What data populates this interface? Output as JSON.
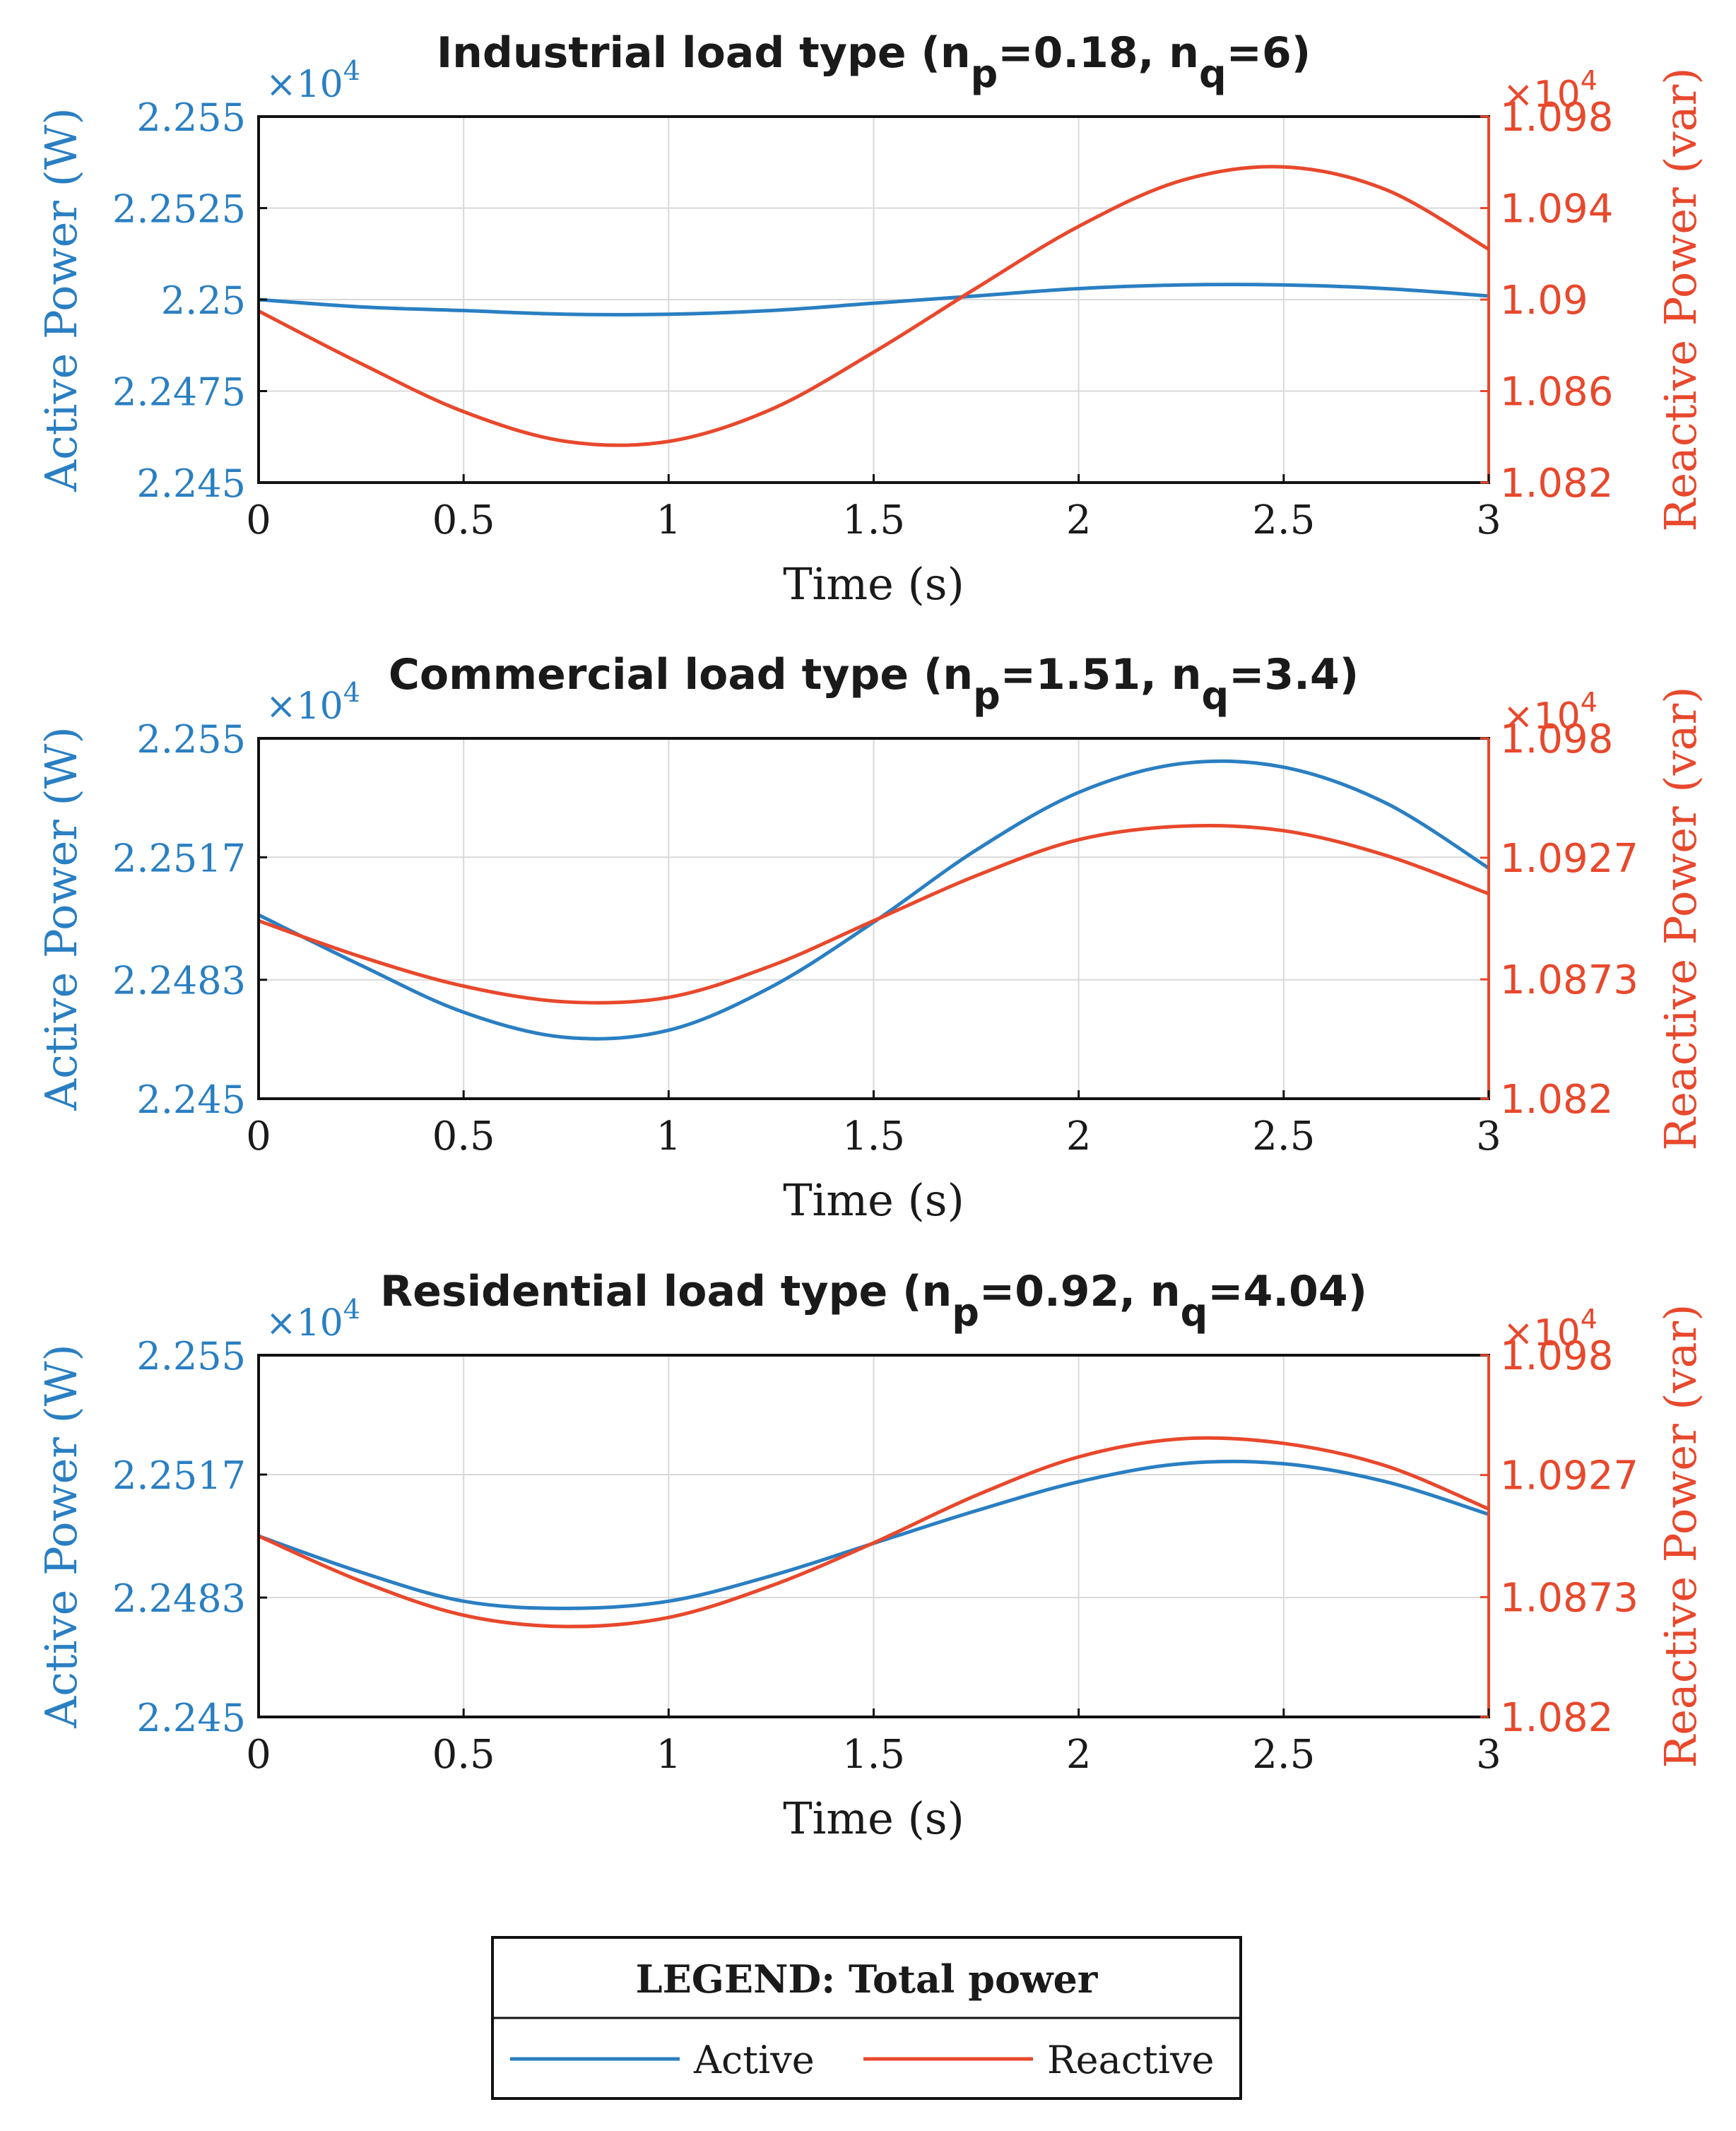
{
  "colors": {
    "active": "#2a7fc2",
    "reactive": "#e8482c",
    "grid": "#d9d9d9",
    "axis": "#111111",
    "text": "#1a1a1a"
  },
  "legend": {
    "title": "LEGEND: Total power",
    "items": [
      "Active",
      "Reactive"
    ]
  },
  "chart_data": [
    {
      "type": "line",
      "title": "Industrial load type (n_p=0.18, n_q=6)",
      "title_parts": {
        "prefix": "Industrial load type (n",
        "sub_p": "p",
        "mid": "=0.18, n",
        "sub_q": "q",
        "suffix": "=6)"
      },
      "xlabel": "Time (s)",
      "ylabel_left": "Active Power (W)",
      "ylabel_right": "Reactive Power (var)",
      "scale_left": "×10",
      "scale_right": "×10",
      "scale_exp": "4",
      "xlim": [
        0,
        3
      ],
      "xticks": [
        0,
        0.5,
        1,
        1.5,
        2,
        2.5,
        3
      ],
      "xtick_labels": [
        "0",
        "0.5",
        "1",
        "1.5",
        "2",
        "2.5",
        "3"
      ],
      "ylim_left": [
        2.245,
        2.255
      ],
      "yticks_left": [
        2.245,
        2.2475,
        2.25,
        2.2525,
        2.255
      ],
      "ytick_labels_left": [
        "2.245",
        "2.2475",
        "2.25",
        "2.2525",
        "2.255"
      ],
      "ylim_right": [
        1.082,
        1.098
      ],
      "yticks_right": [
        1.082,
        1.086,
        1.09,
        1.094,
        1.098
      ],
      "ytick_labels_right": [
        "1.082",
        "1.086",
        "1.09",
        "1.094",
        "1.098"
      ],
      "x": [
        0,
        0.25,
        0.5,
        0.75,
        1,
        1.25,
        1.5,
        1.75,
        2,
        2.25,
        2.5,
        2.75,
        3
      ],
      "series": [
        {
          "name": "Active",
          "axis": "left",
          "values": [
            2.25,
            2.2498,
            2.2497,
            2.2496,
            2.2496,
            2.2497,
            2.2499,
            2.2501,
            2.2503,
            2.2504,
            2.2504,
            2.2503,
            2.2501
          ]
        },
        {
          "name": "Reactive",
          "axis": "right",
          "values": [
            1.0895,
            1.0872,
            1.0851,
            1.0838,
            1.0838,
            1.0852,
            1.0877,
            1.0905,
            1.0932,
            1.0952,
            1.0958,
            1.0948,
            1.0922
          ]
        }
      ]
    },
    {
      "type": "line",
      "title": "Commercial load type (n_p=1.51, n_q=3.4)",
      "title_parts": {
        "prefix": "Commercial load type (n",
        "sub_p": "p",
        "mid": "=1.51, n",
        "sub_q": "q",
        "suffix": "=3.4)"
      },
      "xlabel": "Time (s)",
      "ylabel_left": "Active Power (W)",
      "ylabel_right": "Reactive Power (var)",
      "scale_left": "×10",
      "scale_right": "×10",
      "scale_exp": "4",
      "xlim": [
        0,
        3
      ],
      "xticks": [
        0,
        0.5,
        1,
        1.5,
        2,
        2.5,
        3
      ],
      "xtick_labels": [
        "0",
        "0.5",
        "1",
        "1.5",
        "2",
        "2.5",
        "3"
      ],
      "ylim_left": [
        2.245,
        2.255
      ],
      "yticks_left": [
        2.245,
        2.2483,
        2.2517,
        2.255
      ],
      "ytick_labels_left": [
        "2.245",
        "2.2483",
        "2.2517",
        "2.255"
      ],
      "ylim_right": [
        1.082,
        1.098
      ],
      "yticks_right": [
        1.082,
        1.0873,
        1.0927,
        1.098
      ],
      "ytick_labels_right": [
        "1.082",
        "1.0873",
        "1.0927",
        "1.098"
      ],
      "x": [
        0,
        0.25,
        0.5,
        0.75,
        1,
        1.25,
        1.5,
        1.75,
        2,
        2.25,
        2.5,
        2.75,
        3
      ],
      "series": [
        {
          "name": "Active",
          "axis": "left",
          "values": [
            2.2501,
            2.2487,
            2.2474,
            2.2467,
            2.2469,
            2.2481,
            2.2499,
            2.2519,
            2.2535,
            2.2543,
            2.2542,
            2.2532,
            2.2514
          ]
        },
        {
          "name": "Reactive",
          "axis": "right",
          "values": [
            1.0899,
            1.0883,
            1.087,
            1.0863,
            1.0865,
            1.0879,
            1.0899,
            1.0919,
            1.0935,
            1.0941,
            1.0939,
            1.0928,
            1.0911
          ]
        }
      ]
    },
    {
      "type": "line",
      "title": "Residential load type (n_p=0.92, n_q=4.04)",
      "title_parts": {
        "prefix": "Residential load type (n",
        "sub_p": "p",
        "mid": "=0.92, n",
        "sub_q": "q",
        "suffix": "=4.04)"
      },
      "xlabel": "Time (s)",
      "ylabel_left": "Active Power (W)",
      "ylabel_right": "Reactive Power (var)",
      "scale_left": "×10",
      "scale_right": "×10",
      "scale_exp": "4",
      "xlim": [
        0,
        3
      ],
      "xticks": [
        0,
        0.5,
        1,
        1.5,
        2,
        2.5,
        3
      ],
      "xtick_labels": [
        "0",
        "0.5",
        "1",
        "1.5",
        "2",
        "2.5",
        "3"
      ],
      "ylim_left": [
        2.245,
        2.255
      ],
      "yticks_left": [
        2.245,
        2.2483,
        2.2517,
        2.255
      ],
      "ytick_labels_left": [
        "2.245",
        "2.2483",
        "2.2517",
        "2.255"
      ],
      "ylim_right": [
        1.082,
        1.098
      ],
      "yticks_right": [
        1.082,
        1.0873,
        1.0927,
        1.098
      ],
      "ytick_labels_right": [
        "1.082",
        "1.0873",
        "1.0927",
        "1.098"
      ],
      "x": [
        0,
        0.25,
        0.5,
        0.75,
        1,
        1.25,
        1.5,
        1.75,
        2,
        2.25,
        2.5,
        2.75,
        3
      ],
      "series": [
        {
          "name": "Active",
          "axis": "left",
          "values": [
            2.25,
            2.249,
            2.2482,
            2.248,
            2.2482,
            2.2489,
            2.2498,
            2.2507,
            2.2515,
            2.252,
            2.252,
            2.2515,
            2.2506
          ]
        },
        {
          "name": "Reactive",
          "axis": "right",
          "values": [
            1.09,
            1.088,
            1.0865,
            1.086,
            1.0864,
            1.0878,
            1.0897,
            1.0918,
            1.0935,
            1.0943,
            1.0941,
            1.0931,
            1.0912
          ]
        }
      ]
    }
  ]
}
